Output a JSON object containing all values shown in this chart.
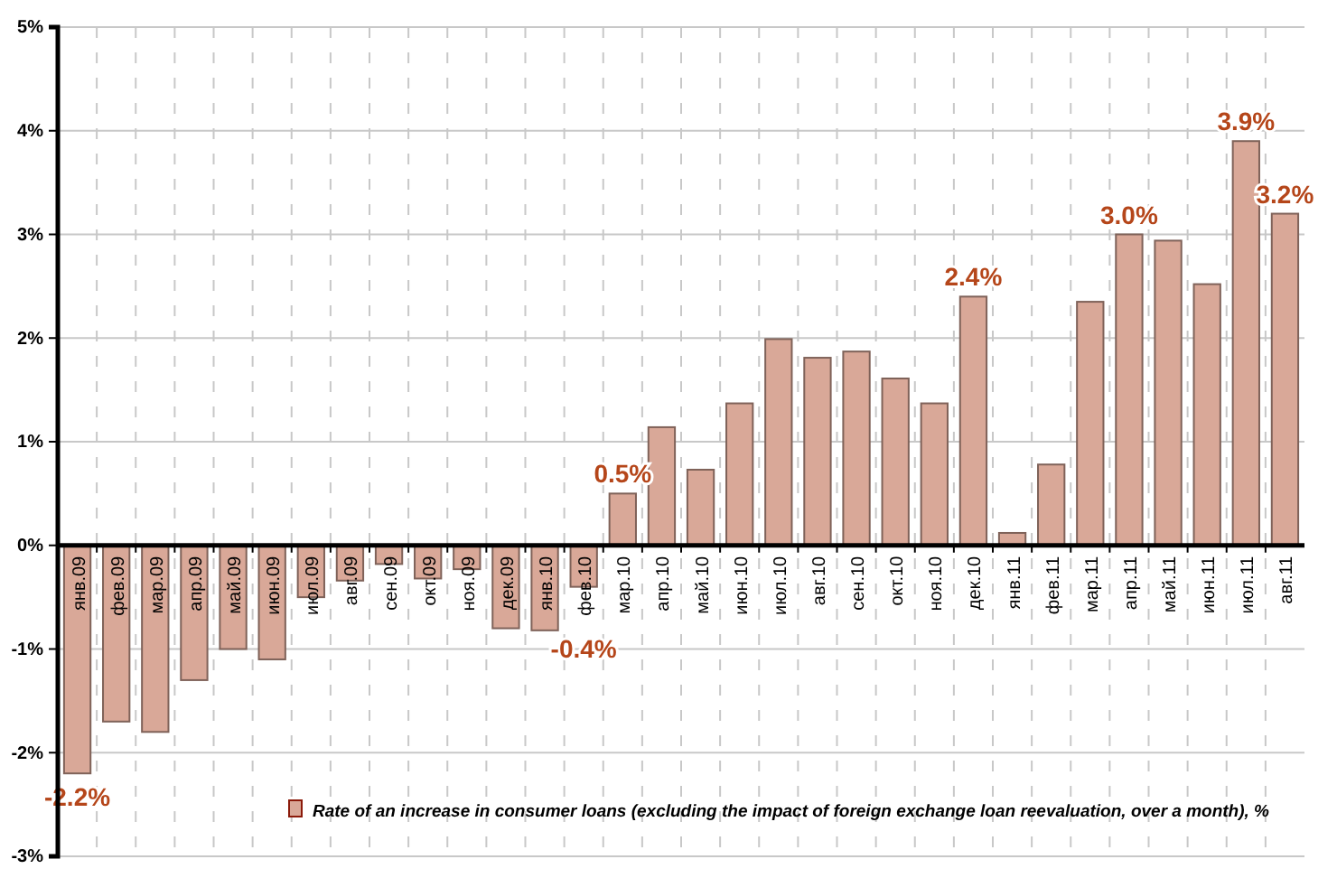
{
  "chart_data": {
    "type": "bar",
    "categories": [
      "янв.09",
      "фев.09",
      "мар.09",
      "апр.09",
      "май.09",
      "июн.09",
      "июл.09",
      "авг.09",
      "сен.09",
      "окт.09",
      "ноя.09",
      "дек.09",
      "янв.10",
      "фев.10",
      "мар.10",
      "апр.10",
      "май.10",
      "июн.10",
      "июл.10",
      "авг.10",
      "сен.10",
      "окт.10",
      "ноя.10",
      "дек.10",
      "янв.11",
      "фев.11",
      "мар.11",
      "апр.11",
      "май.11",
      "июн.11",
      "июл.11",
      "авг.11"
    ],
    "series": [
      {
        "name": "Rate of an increase in consumer loans (excluding the impact of foreign exchange loan reevaluation, over a month), %",
        "color": "#d9a898",
        "values": [
          -2.2,
          -1.7,
          -1.8,
          -1.3,
          -1.0,
          -1.1,
          -0.5,
          -0.34,
          -0.18,
          -0.32,
          -0.23,
          -0.8,
          -0.82,
          -0.4,
          0.5,
          1.14,
          0.73,
          1.37,
          1.99,
          1.81,
          1.87,
          1.61,
          1.37,
          2.4,
          0.12,
          0.78,
          2.35,
          3.0,
          2.94,
          2.52,
          3.9,
          3.2
        ],
        "value_labels": [
          "-2.2%",
          null,
          null,
          null,
          null,
          null,
          null,
          null,
          null,
          null,
          null,
          null,
          null,
          "-0.4%",
          "0.5%",
          null,
          null,
          null,
          null,
          null,
          null,
          null,
          null,
          "2.4%",
          null,
          null,
          null,
          "3.0%",
          null,
          null,
          "3.9%",
          "3.2%"
        ]
      }
    ],
    "ylim": [
      -3,
      5
    ],
    "yticks": [
      {
        "value": -3,
        "label": "-3%"
      },
      {
        "value": -2,
        "label": "-2%"
      },
      {
        "value": -1,
        "label": "-1%"
      },
      {
        "value": 0,
        "label": "0%"
      },
      {
        "value": 1,
        "label": "1%"
      },
      {
        "value": 2,
        "label": "2%"
      },
      {
        "value": 3,
        "label": "3%"
      },
      {
        "value": 4,
        "label": "4%"
      },
      {
        "value": 5,
        "label": "5%"
      }
    ],
    "grid": true,
    "legend": "bottom"
  }
}
